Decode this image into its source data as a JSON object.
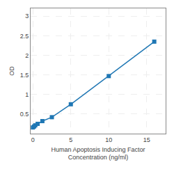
{
  "chart_data": {
    "type": "line",
    "x": [
      0,
      0.156,
      0.312,
      0.625,
      1.25,
      2.5,
      5,
      10,
      16
    ],
    "values": [
      0.158,
      0.183,
      0.212,
      0.25,
      0.32,
      0.42,
      0.75,
      1.47,
      2.35
    ],
    "marker": "square",
    "xlabel": "Human Apoptosis Inducing Factor\nConcentration (ng/ml)",
    "ylabel": "OD",
    "xlim": [
      -0.3,
      17.5
    ],
    "ylim": [
      0.0,
      3.2
    ],
    "xticks": [
      0,
      5,
      10,
      15
    ],
    "yticks": [
      0.5,
      1,
      1.5,
      2,
      2.5,
      3
    ],
    "grid": true
  }
}
